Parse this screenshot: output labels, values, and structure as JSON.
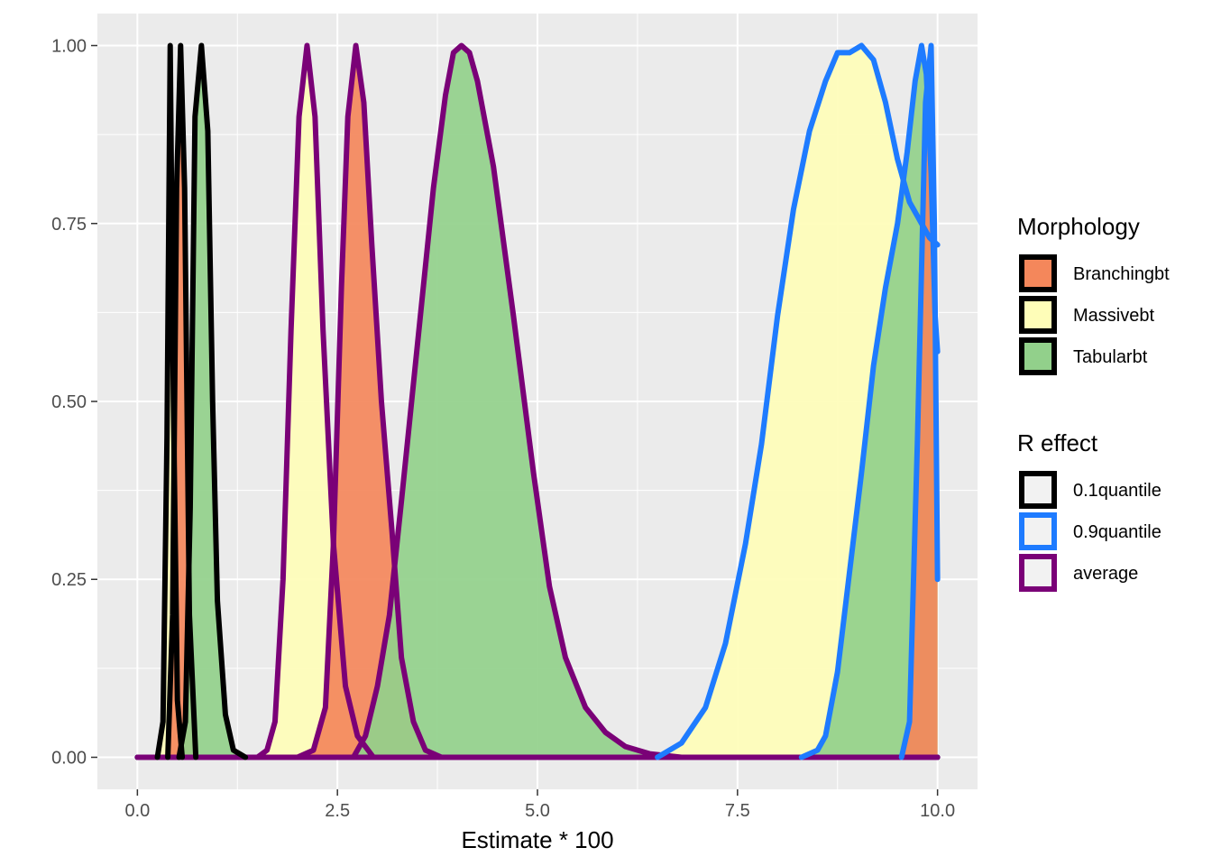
{
  "chart_data": {
    "type": "area",
    "xlabel": "Estimate * 100",
    "ylabel": "",
    "xlim": [
      -0.5,
      10.5
    ],
    "ylim": [
      -0.045,
      1.045
    ],
    "x_ticks": [
      0.0,
      2.5,
      5.0,
      7.5,
      10.0
    ],
    "x_tick_labels": [
      "0.0",
      "2.5",
      "5.0",
      "7.5",
      "10.0"
    ],
    "y_ticks": [
      0.0,
      0.25,
      0.5,
      0.75,
      1.0
    ],
    "y_tick_labels": [
      "0.00",
      "0.25",
      "0.50",
      "0.75",
      "1.00"
    ],
    "grid": true,
    "legend_position": "right",
    "legends": [
      {
        "title": "Morphology",
        "kind": "fill",
        "items": [
          {
            "label": "Branchingbt",
            "color": "#F4875B"
          },
          {
            "label": "Massivebt",
            "color": "#FEFDB8"
          },
          {
            "label": "Tabularbt",
            "color": "#92D08B"
          }
        ]
      },
      {
        "title": "R effect",
        "kind": "outline",
        "items": [
          {
            "label": "0.1quantile",
            "color": "#000000"
          },
          {
            "label": "0.9quantile",
            "color": "#1E7BFF"
          },
          {
            "label": "average",
            "color": "#7A0177"
          }
        ]
      }
    ],
    "series": [
      {
        "morphology": "Massivebt",
        "r_effect": "0.1quantile",
        "fill": "#FEFDB8",
        "outline": "#000000",
        "points": [
          [
            0.25,
            0
          ],
          [
            0.32,
            0.05
          ],
          [
            0.37,
            0.45
          ],
          [
            0.41,
            1.0
          ],
          [
            0.45,
            0.5
          ],
          [
            0.5,
            0.08
          ],
          [
            0.56,
            0
          ]
        ]
      },
      {
        "morphology": "Branchingbt",
        "r_effect": "0.1quantile",
        "fill": "#F4875B",
        "outline": "#000000",
        "points": [
          [
            0.38,
            0
          ],
          [
            0.44,
            0.2
          ],
          [
            0.49,
            0.8
          ],
          [
            0.54,
            1.0
          ],
          [
            0.59,
            0.8
          ],
          [
            0.65,
            0.2
          ],
          [
            0.73,
            0
          ]
        ]
      },
      {
        "morphology": "Tabularbt",
        "r_effect": "0.1quantile",
        "fill": "#92D08B",
        "outline": "#000000",
        "points": [
          [
            0.52,
            0
          ],
          [
            0.6,
            0.05
          ],
          [
            0.66,
            0.35
          ],
          [
            0.72,
            0.9
          ],
          [
            0.8,
            1.0
          ],
          [
            0.88,
            0.88
          ],
          [
            0.94,
            0.5
          ],
          [
            1.0,
            0.22
          ],
          [
            1.1,
            0.06
          ],
          [
            1.2,
            0.01
          ],
          [
            1.35,
            0
          ]
        ]
      },
      {
        "morphology": "Massivebt",
        "r_effect": "average",
        "fill": "#FEFDB8",
        "outline": "#7A0177",
        "points": [
          [
            1.5,
            0
          ],
          [
            1.62,
            0.01
          ],
          [
            1.72,
            0.05
          ],
          [
            1.82,
            0.25
          ],
          [
            1.92,
            0.6
          ],
          [
            2.02,
            0.9
          ],
          [
            2.12,
            1.0
          ],
          [
            2.22,
            0.9
          ],
          [
            2.32,
            0.6
          ],
          [
            2.45,
            0.3
          ],
          [
            2.6,
            0.1
          ],
          [
            2.75,
            0.03
          ],
          [
            2.95,
            0
          ]
        ]
      },
      {
        "morphology": "Branchingbt",
        "r_effect": "average",
        "fill": "#F4875B",
        "outline": "#7A0177",
        "points": [
          [
            2.0,
            0
          ],
          [
            2.2,
            0.01
          ],
          [
            2.35,
            0.07
          ],
          [
            2.45,
            0.3
          ],
          [
            2.55,
            0.66
          ],
          [
            2.63,
            0.9
          ],
          [
            2.73,
            1.0
          ],
          [
            2.83,
            0.92
          ],
          [
            2.93,
            0.72
          ],
          [
            3.05,
            0.5
          ],
          [
            3.18,
            0.32
          ],
          [
            3.3,
            0.14
          ],
          [
            3.45,
            0.05
          ],
          [
            3.6,
            0.01
          ],
          [
            3.8,
            0
          ]
        ]
      },
      {
        "morphology": "Tabularbt",
        "r_effect": "average",
        "fill": "#92D08B",
        "outline": "#7A0177",
        "points": [
          [
            2.7,
            0
          ],
          [
            2.85,
            0.03
          ],
          [
            3.0,
            0.1
          ],
          [
            3.15,
            0.2
          ],
          [
            3.3,
            0.36
          ],
          [
            3.5,
            0.58
          ],
          [
            3.7,
            0.8
          ],
          [
            3.85,
            0.93
          ],
          [
            3.95,
            0.99
          ],
          [
            4.05,
            1.0
          ],
          [
            4.15,
            0.99
          ],
          [
            4.25,
            0.95
          ],
          [
            4.45,
            0.83
          ],
          [
            4.7,
            0.62
          ],
          [
            4.95,
            0.4
          ],
          [
            5.15,
            0.24
          ],
          [
            5.35,
            0.14
          ],
          [
            5.6,
            0.07
          ],
          [
            5.85,
            0.035
          ],
          [
            6.1,
            0.015
          ],
          [
            6.4,
            0.005
          ],
          [
            6.8,
            0
          ]
        ]
      },
      {
        "morphology": "Massivebt",
        "r_effect": "0.9quantile",
        "fill": "#FEFDB8",
        "outline": "#1E7BFF",
        "points": [
          [
            6.5,
            0
          ],
          [
            6.8,
            0.02
          ],
          [
            7.1,
            0.07
          ],
          [
            7.35,
            0.16
          ],
          [
            7.6,
            0.3
          ],
          [
            7.8,
            0.44
          ],
          [
            8.0,
            0.62
          ],
          [
            8.2,
            0.77
          ],
          [
            8.4,
            0.88
          ],
          [
            8.6,
            0.95
          ],
          [
            8.75,
            0.99
          ],
          [
            8.9,
            0.99
          ],
          [
            9.05,
            1.0
          ],
          [
            9.2,
            0.98
          ],
          [
            9.35,
            0.92
          ],
          [
            9.5,
            0.84
          ],
          [
            9.65,
            0.78
          ],
          [
            9.8,
            0.75
          ],
          [
            9.9,
            0.73
          ],
          [
            10.0,
            0.72
          ]
        ]
      },
      {
        "morphology": "Tabularbt",
        "r_effect": "0.9quantile",
        "fill": "#92D08B",
        "outline": "#1E7BFF",
        "points": [
          [
            8.3,
            0
          ],
          [
            8.5,
            0.01
          ],
          [
            8.6,
            0.03
          ],
          [
            8.75,
            0.12
          ],
          [
            8.9,
            0.26
          ],
          [
            9.05,
            0.4
          ],
          [
            9.2,
            0.55
          ],
          [
            9.35,
            0.66
          ],
          [
            9.5,
            0.75
          ],
          [
            9.62,
            0.85
          ],
          [
            9.72,
            0.95
          ],
          [
            9.8,
            1.0
          ],
          [
            9.86,
            0.96
          ],
          [
            9.92,
            0.82
          ],
          [
            9.97,
            0.62
          ],
          [
            10.0,
            0.57
          ]
        ]
      },
      {
        "morphology": "Branchingbt",
        "r_effect": "0.9quantile",
        "fill": "#F4875B",
        "outline": "#1E7BFF",
        "points": [
          [
            9.55,
            0
          ],
          [
            9.65,
            0.05
          ],
          [
            9.75,
            0.45
          ],
          [
            9.85,
            0.92
          ],
          [
            9.92,
            1.0
          ],
          [
            9.96,
            0.75
          ],
          [
            10.0,
            0.25
          ]
        ]
      }
    ]
  }
}
